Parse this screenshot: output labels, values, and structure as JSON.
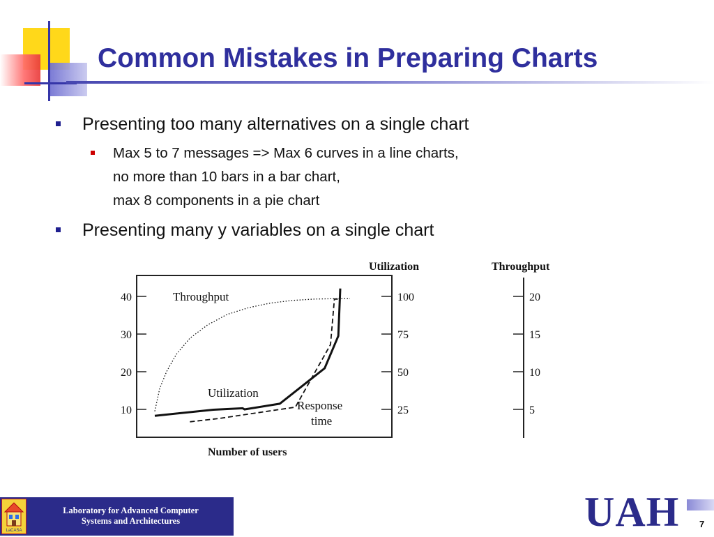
{
  "slide": {
    "title": "Common Mistakes in Preparing Charts",
    "bullets": [
      {
        "text": "Presenting too many alternatives on a single chart",
        "sub": [
          {
            "lines": [
              "Max 5 to 7 messages => Max 6 curves in a line charts,",
              "no more than 10 bars in a bar chart,",
              "max 8 components in a pie chart"
            ]
          }
        ]
      },
      {
        "text": "Presenting many y variables on a single chart",
        "sub": []
      }
    ]
  },
  "chart_data": {
    "type": "line",
    "xlabel": "Number of users",
    "left_axis": {
      "ticks": [
        "10",
        "20",
        "30",
        "40"
      ]
    },
    "right_axes": [
      {
        "title": "Utilization",
        "ticks": [
          "25",
          "50",
          "75",
          "100"
        ]
      },
      {
        "title": "Throughput",
        "ticks": [
          "5",
          "10",
          "15",
          "20"
        ]
      }
    ],
    "series": [
      {
        "name": "Throughput",
        "style": "dotted",
        "points": [
          [
            0.0,
            9.5
          ],
          [
            0.025,
            15.5
          ],
          [
            0.06,
            20.0
          ],
          [
            0.11,
            24.6
          ],
          [
            0.18,
            28.9
          ],
          [
            0.27,
            32.4
          ],
          [
            0.37,
            35.2
          ],
          [
            0.48,
            37.0
          ],
          [
            0.59,
            38.2
          ],
          [
            0.7,
            38.9
          ],
          [
            0.82,
            39.3
          ],
          [
            0.94,
            39.4
          ],
          [
            1.0,
            39.4
          ]
        ]
      },
      {
        "name": "Utilization",
        "style": "solid",
        "points": [
          [
            0.0,
            8.3
          ],
          [
            0.3,
            9.9
          ],
          [
            0.45,
            10.3
          ],
          [
            0.46,
            10.0
          ],
          [
            0.64,
            11.5
          ],
          [
            0.87,
            20.9
          ],
          [
            0.94,
            29.5
          ],
          [
            0.95,
            42.1
          ]
        ]
      },
      {
        "name": "Response time",
        "style": "dashed",
        "points": [
          [
            0.18,
            6.7
          ],
          [
            0.33,
            7.6
          ],
          [
            0.72,
            10.6
          ],
          [
            0.9,
            27.2
          ],
          [
            0.92,
            39.3
          ],
          [
            0.95,
            39.3
          ]
        ]
      }
    ],
    "annotations": [
      "Throughput",
      "Utilization",
      "Response",
      "time"
    ],
    "colors": {
      "series": "#111111",
      "axis": "#222222"
    }
  },
  "footer": {
    "lab_line1": "Laboratory for Advanced Computer",
    "lab_line2": "Systems and Architectures",
    "logo_text": "LaCASA",
    "university": "UAH",
    "page_number": "7"
  },
  "colors": {
    "title": "#2f2f9d",
    "bullet_l1": "#1f1f8f",
    "bullet_l2": "#cc0000",
    "footer_bg": "#2b2b8a"
  }
}
